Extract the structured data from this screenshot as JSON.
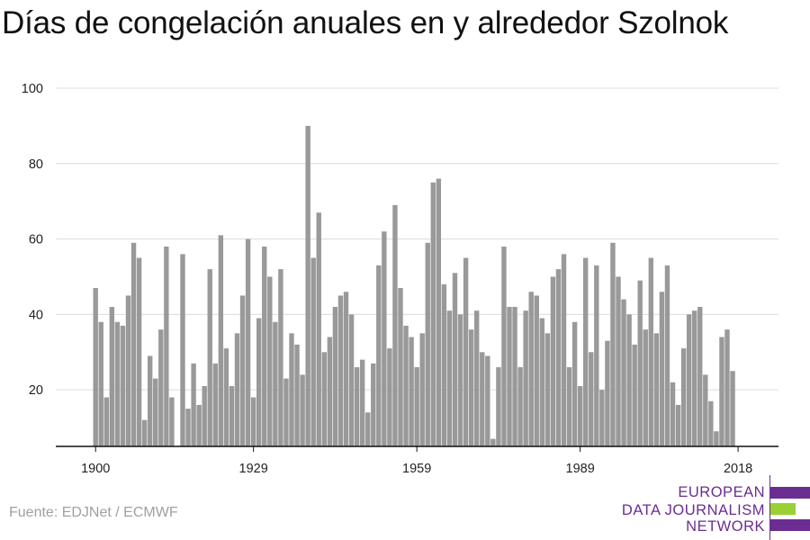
{
  "title": "Días de congelación anuales en y alrededor Szolnok",
  "source": "Fuente: EDJNet / ECMWF",
  "logo": {
    "lines": [
      "EUROPEAN",
      "DATA JOURNALISM",
      "NETWORK"
    ],
    "colors": [
      "#6b2d91",
      "#9ad033",
      "#6b2d91"
    ]
  },
  "chart_data": {
    "type": "bar",
    "xlabel": "",
    "ylabel": "",
    "ylim": [
      5,
      100
    ],
    "yticks": [
      20,
      40,
      60,
      80,
      100
    ],
    "xticks": [
      1900,
      1929,
      1959,
      1989,
      2018
    ],
    "grid": true,
    "bar_color": "#999999",
    "x_start": 1900,
    "values": [
      47,
      38,
      18,
      42,
      38,
      37,
      45,
      59,
      55,
      12,
      29,
      23,
      36,
      58,
      18,
      5,
      56,
      15,
      27,
      16,
      21,
      52,
      27,
      61,
      31,
      21,
      35,
      45,
      60,
      18,
      39,
      58,
      50,
      38,
      52,
      23,
      35,
      32,
      24,
      90,
      55,
      67,
      30,
      34,
      42,
      45,
      46,
      40,
      26,
      28,
      14,
      27,
      53,
      62,
      31,
      69,
      47,
      37,
      34,
      26,
      35,
      59,
      75,
      76,
      48,
      41,
      51,
      40,
      55,
      36,
      41,
      30,
      29,
      7,
      26,
      58,
      42,
      42,
      26,
      41,
      46,
      45,
      39,
      35,
      50,
      52,
      56,
      26,
      38,
      21,
      55,
      30,
      53,
      20,
      33,
      59,
      50,
      44,
      40,
      32,
      49,
      36,
      55,
      35,
      46,
      53,
      22,
      16,
      31,
      40,
      41,
      42,
      24,
      17,
      9,
      34,
      36,
      25
    ]
  }
}
